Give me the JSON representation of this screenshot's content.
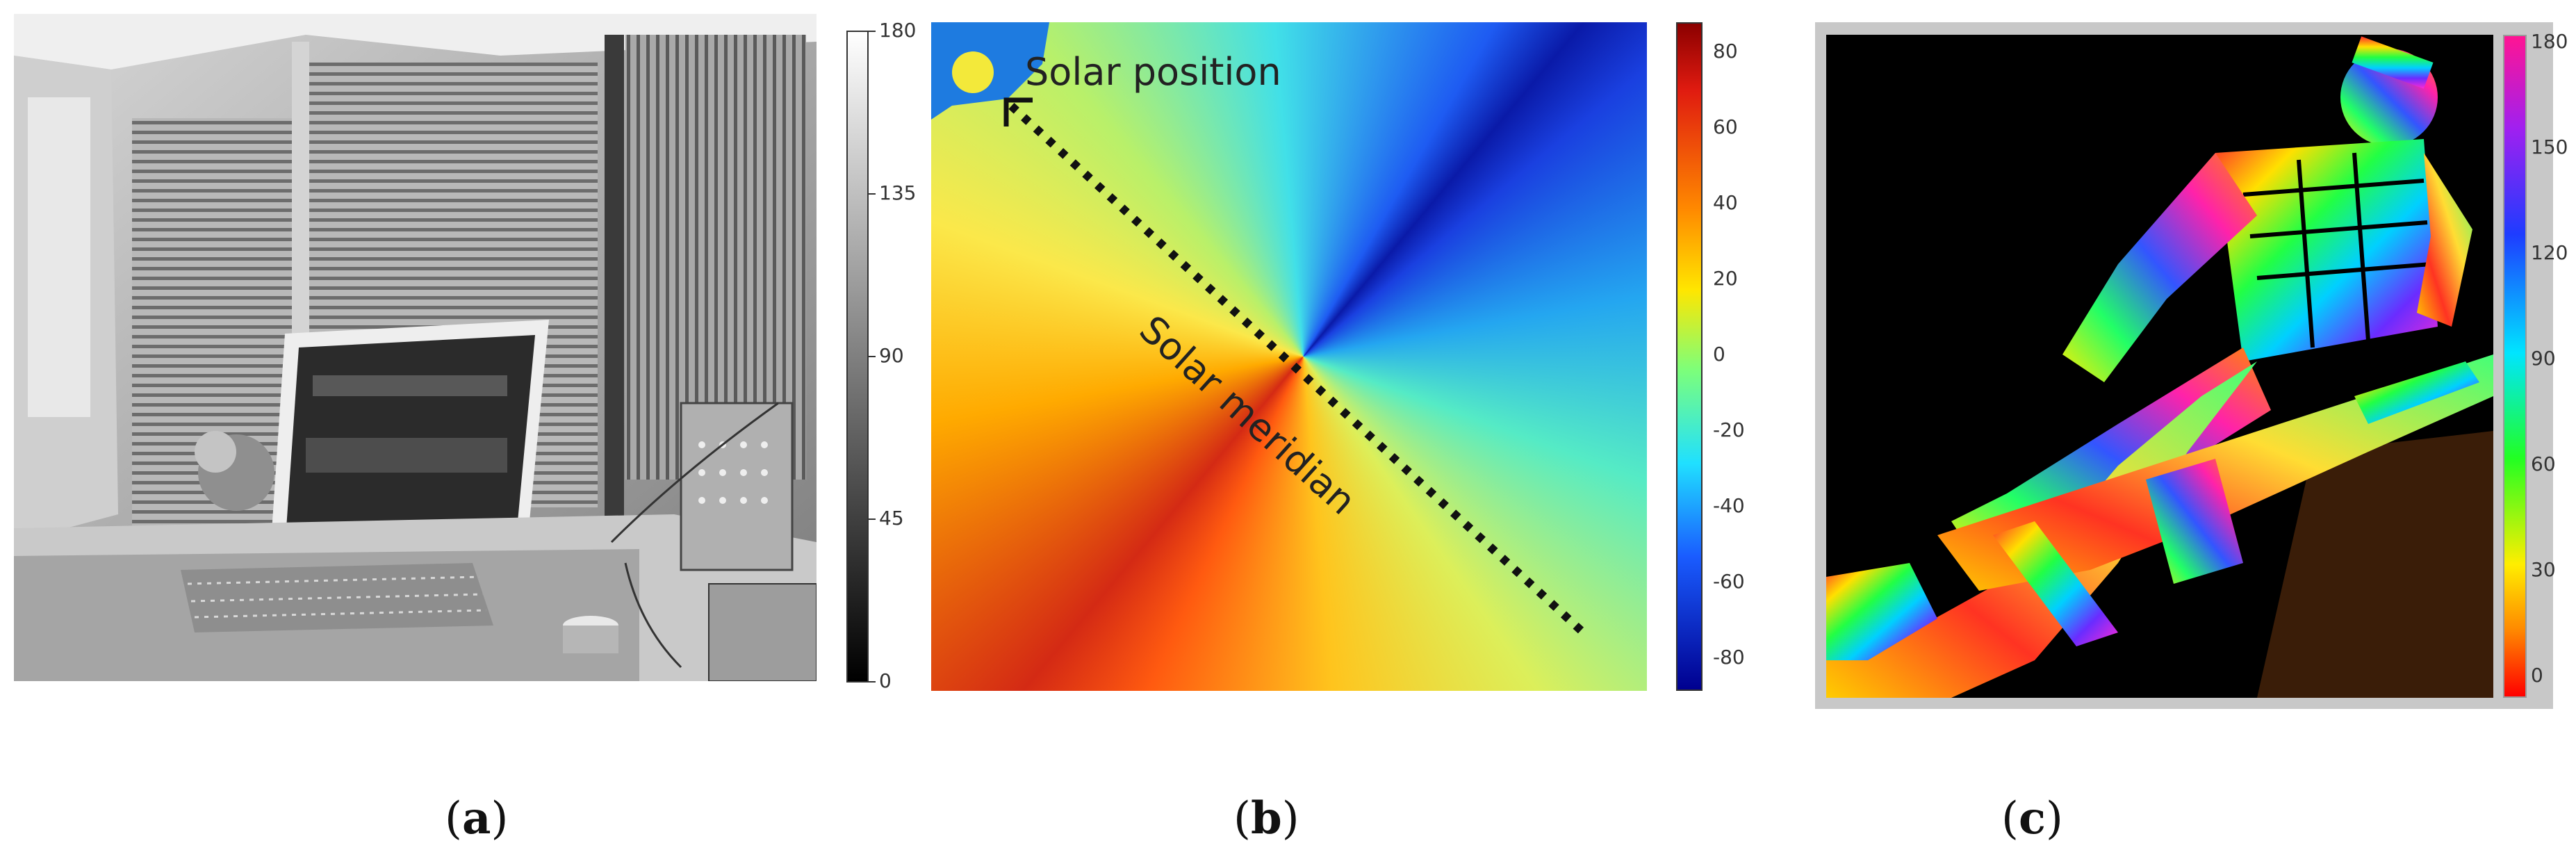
{
  "figure": {
    "panels": [
      {
        "id": "a",
        "caption_open": "(",
        "caption_letter": "a",
        "caption_close": ")",
        "description_icon": "grayscale-polarization-angle-image",
        "colorbar": {
          "colormap": "gray",
          "ticks": [
            "180",
            "135",
            "90",
            "45",
            "0"
          ]
        }
      },
      {
        "id": "b",
        "caption_open": "(",
        "caption_letter": "b",
        "caption_close": ")",
        "description_icon": "sky-polarization-pattern",
        "annotations": {
          "solar_position": "Solar position",
          "solar_meridian": "Solar meridian"
        },
        "colorbar": {
          "colormap": "jet",
          "ticks": [
            "80",
            "60",
            "40",
            "20",
            "0",
            "-20",
            "-40",
            "-60",
            "-80"
          ]
        }
      },
      {
        "id": "c",
        "caption_open": "(",
        "caption_letter": "c",
        "caption_close": ")",
        "description_icon": "hsv-polarization-soldier-figure",
        "colorbar": {
          "colormap": "hsv",
          "ticks": [
            "180",
            "150",
            "120",
            "90",
            "60",
            "30",
            "0"
          ]
        }
      }
    ],
    "colors": {
      "background": "#ffffff",
      "panel_c_frame": "#c8c8c8",
      "annotation_text": "#222222",
      "meridian_line": "#111111"
    }
  }
}
